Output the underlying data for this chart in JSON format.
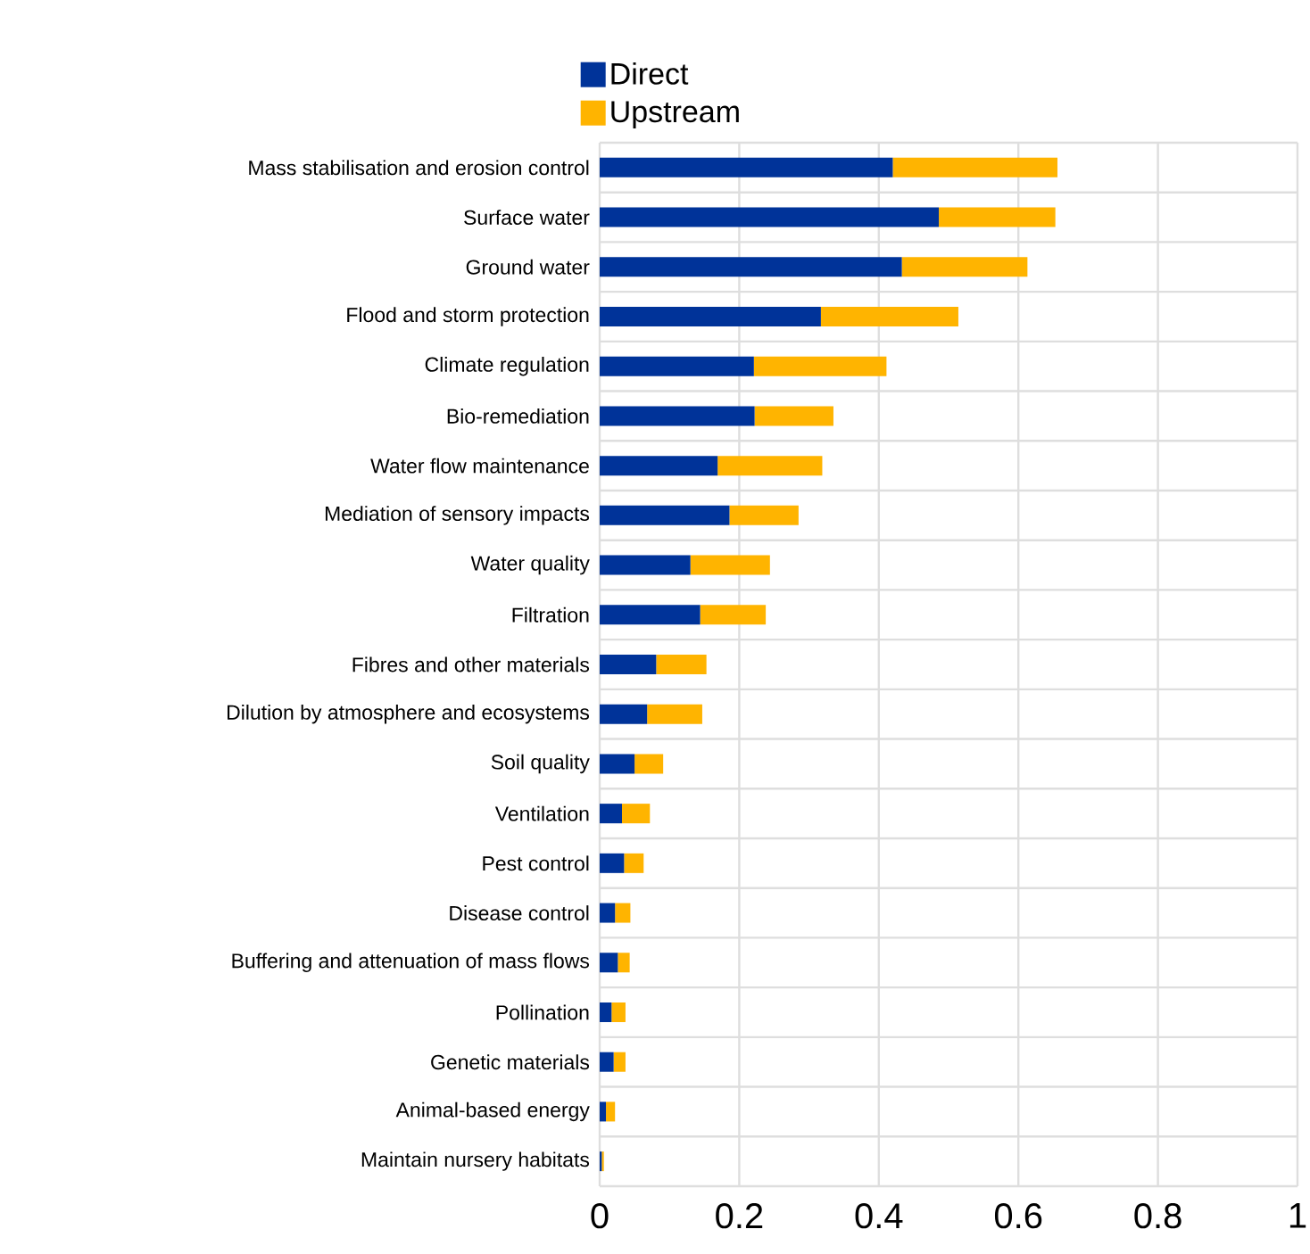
{
  "chart_data": {
    "type": "bar",
    "orientation": "horizontal",
    "stacked": true,
    "categories": [
      "Mass stabilisation and erosion control",
      "Surface water",
      "Ground water",
      "Flood and storm protection",
      "Climate regulation",
      "Bio-remediation",
      "Water flow maintenance",
      "Mediation of sensory impacts",
      "Water quality",
      "Filtration",
      "Fibres and other materials",
      "Dilution by atmosphere and ecosystems",
      "Soil quality",
      "Ventilation",
      "Pest control",
      "Disease control",
      "Buffering and attenuation of mass flows",
      "Pollination",
      "Genetic materials",
      "Animal-based energy",
      "Maintain nursery habitats"
    ],
    "series": [
      {
        "name": "Direct",
        "color": "#003399",
        "values": [
          0.42,
          0.486,
          0.433,
          0.317,
          0.221,
          0.222,
          0.169,
          0.186,
          0.13,
          0.144,
          0.081,
          0.068,
          0.05,
          0.032,
          0.035,
          0.022,
          0.026,
          0.017,
          0.02,
          0.009,
          0.003
        ]
      },
      {
        "name": "Upstream",
        "color": "#ffb400",
        "values": [
          0.236,
          0.167,
          0.18,
          0.197,
          0.19,
          0.113,
          0.15,
          0.099,
          0.114,
          0.094,
          0.072,
          0.079,
          0.041,
          0.04,
          0.028,
          0.022,
          0.017,
          0.02,
          0.017,
          0.013,
          0.003
        ]
      }
    ],
    "xlim": [
      0,
      1
    ],
    "xticks": [
      0,
      0.2,
      0.4,
      0.6,
      0.8,
      1
    ],
    "grid": true,
    "legend": "top"
  }
}
